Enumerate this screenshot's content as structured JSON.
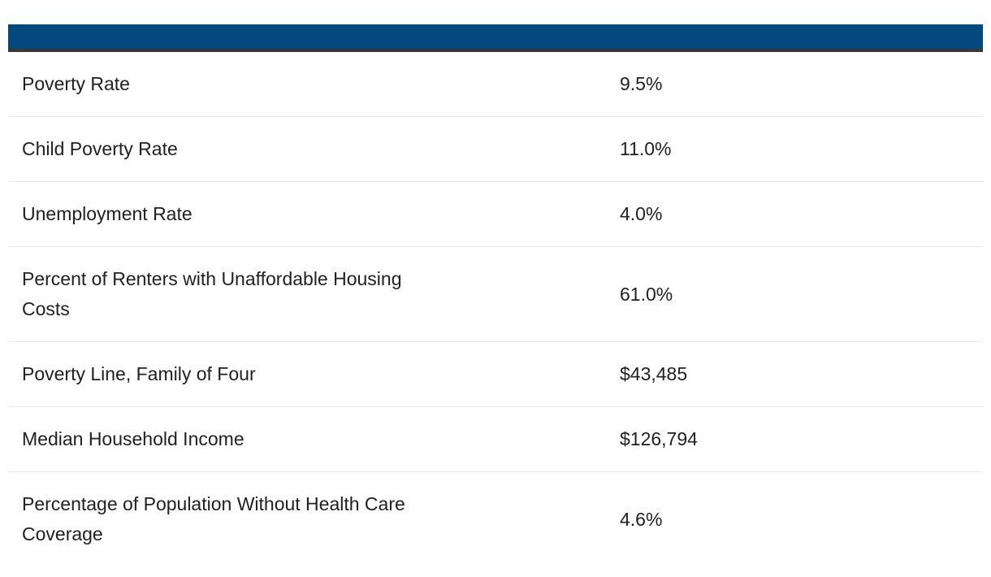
{
  "colors": {
    "header_bar": "#03497E",
    "header_underline": "#383838",
    "row_separator": "#e8e8e8",
    "text": "#212121"
  },
  "table": {
    "rows": [
      {
        "label": "Poverty Rate",
        "value": "9.5%"
      },
      {
        "label": "Child Poverty Rate",
        "value": "11.0%"
      },
      {
        "label": "Unemployment Rate",
        "value": "4.0%"
      },
      {
        "label": "Percent of Renters with Unaffordable Housing Costs",
        "value": "61.0%"
      },
      {
        "label": "Poverty Line, Family of Four",
        "value": "$43,485"
      },
      {
        "label": "Median Household Income",
        "value": "$126,794"
      },
      {
        "label": "Percentage of Population Without Health Care Coverage",
        "value": "4.6%"
      }
    ]
  }
}
